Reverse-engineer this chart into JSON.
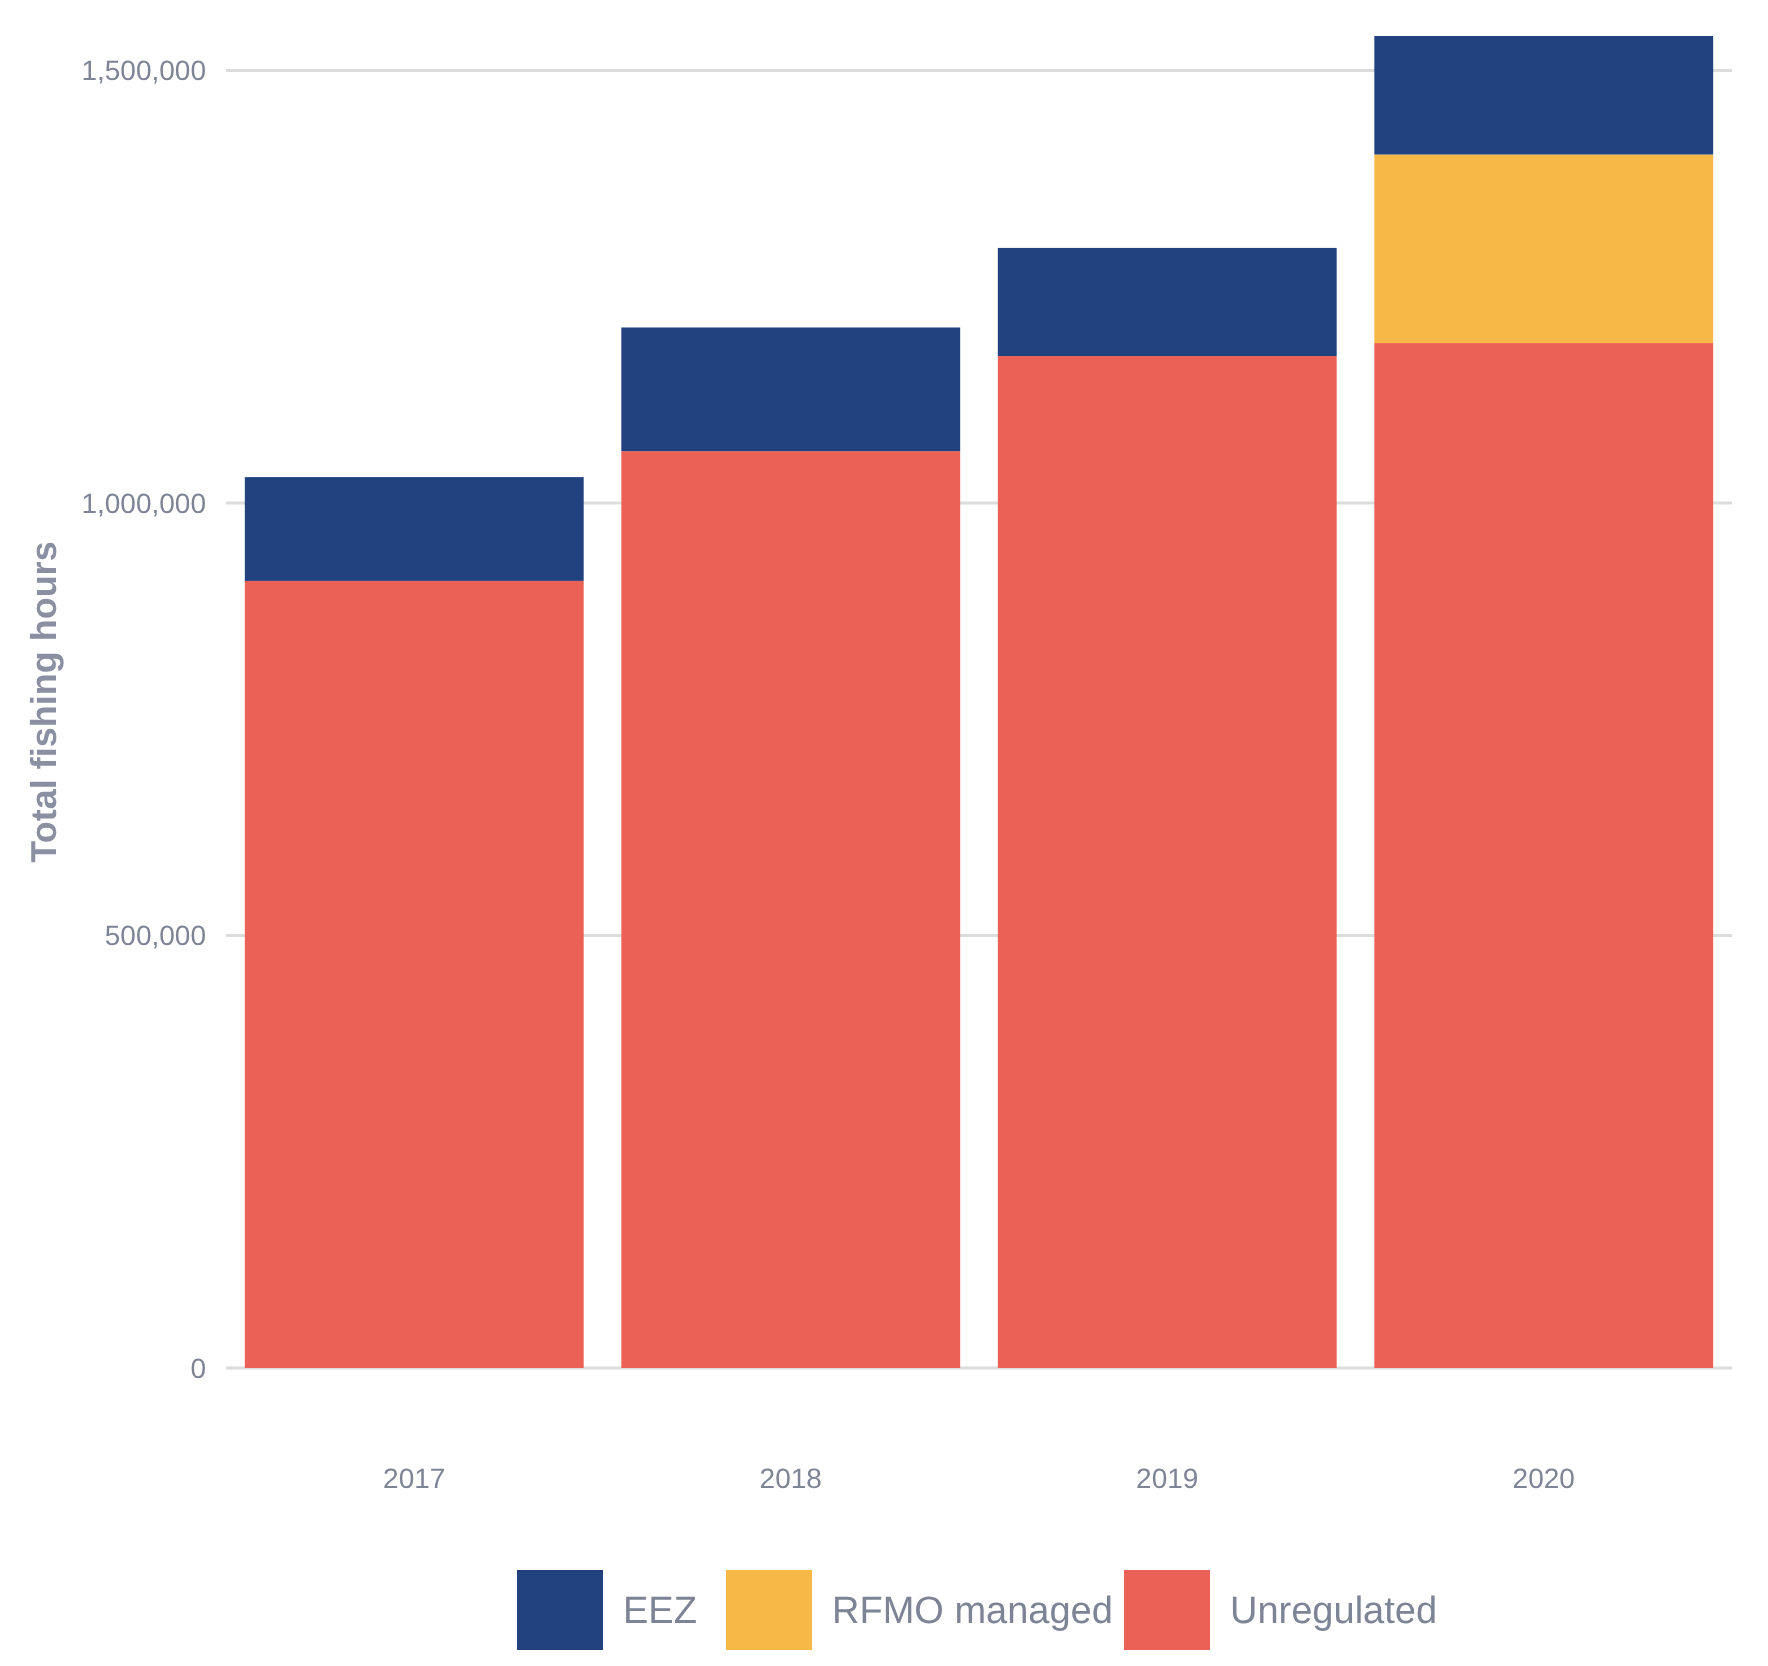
{
  "chart_data": {
    "type": "bar",
    "stacked": true,
    "ylabel": "Total fishing hours",
    "categories": [
      "2017",
      "2018",
      "2019",
      "2020"
    ],
    "series": [
      {
        "name": "Unregulated",
        "color": "#ec6155",
        "values": [
          910000,
          1060000,
          1170000,
          1185000
        ]
      },
      {
        "name": "RFMO managed",
        "color": "#f6b846",
        "values": [
          0,
          0,
          0,
          218000
        ]
      },
      {
        "name": "EEZ",
        "color": "#21417f",
        "values": [
          120000,
          143000,
          125000,
          137000
        ]
      }
    ],
    "ylim": [
      0,
      1540000
    ],
    "yticks": [
      0,
      {
        "value": 500000,
        "label": "500,000"
      },
      {
        "value": 1000000,
        "label": "1,000,000"
      },
      {
        "value": 1500000,
        "label": "1,500,000"
      }
    ],
    "grid": "y",
    "legend": "bottom"
  }
}
